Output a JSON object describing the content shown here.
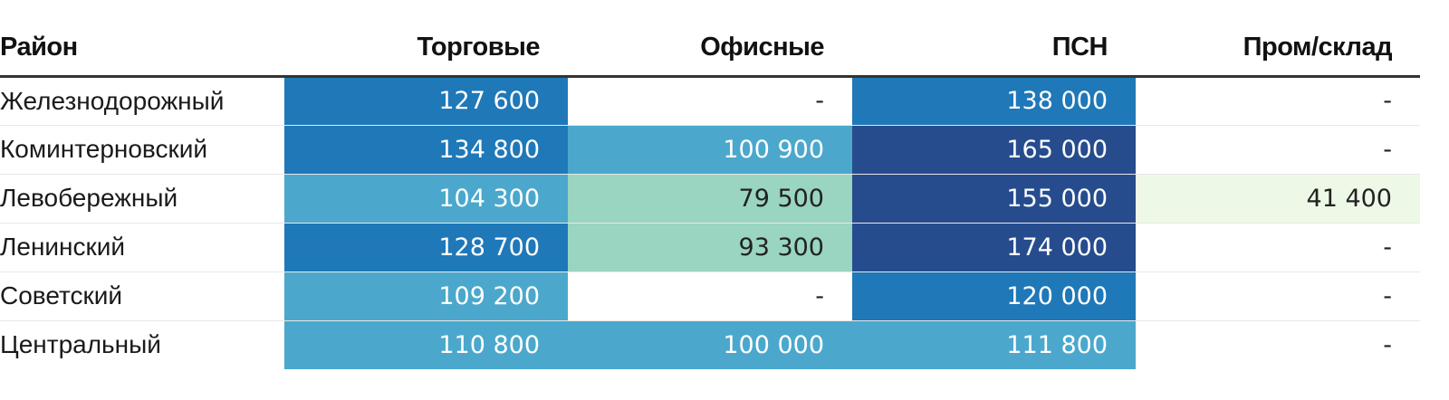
{
  "chart_data": {
    "type": "heatmap",
    "columns": [
      "Район",
      "Торговые",
      "Офисные",
      "ПСН",
      "Пром/склад"
    ],
    "rows": [
      {
        "label": "Железнодорожный",
        "values": [
          127600,
          null,
          138000,
          null
        ],
        "display": [
          "127 600",
          "-",
          "138 000",
          "-"
        ]
      },
      {
        "label": "Коминтерновский",
        "values": [
          134800,
          100900,
          165000,
          null
        ],
        "display": [
          "134 800",
          "100 900",
          "165 000",
          "-"
        ]
      },
      {
        "label": "Левобережный",
        "values": [
          104300,
          79500,
          155000,
          41400
        ],
        "display": [
          "104 300",
          "79 500",
          "155 000",
          "41 400"
        ]
      },
      {
        "label": "Ленинский",
        "values": [
          128700,
          93300,
          174000,
          null
        ],
        "display": [
          "128 700",
          "93 300",
          "174 000",
          "-"
        ]
      },
      {
        "label": "Советский",
        "values": [
          109200,
          null,
          120000,
          null
        ],
        "display": [
          "109 200",
          "-",
          "120 000",
          "-"
        ]
      },
      {
        "label": "Центральный",
        "values": [
          110800,
          100000,
          111800,
          null
        ],
        "display": [
          "110 800",
          "100 000",
          "111 800",
          "-"
        ]
      }
    ],
    "color_scale": [
      {
        "min": 0,
        "max": 60000,
        "color": "#eef8e6",
        "text": "#222222"
      },
      {
        "min": 60000,
        "max": 100000,
        "color": "#99d5c1",
        "text": "#222222"
      },
      {
        "min": 100000,
        "max": 120000,
        "color": "#4ba8cc",
        "text": "#ffffff"
      },
      {
        "min": 120000,
        "max": 150000,
        "color": "#1f78b8",
        "text": "#ffffff"
      },
      {
        "min": 150000,
        "max": 1000000,
        "color": "#264c8e",
        "text": "#ffffff"
      }
    ],
    "empty_color": "#ffffff",
    "empty_text_color": "#222222"
  }
}
